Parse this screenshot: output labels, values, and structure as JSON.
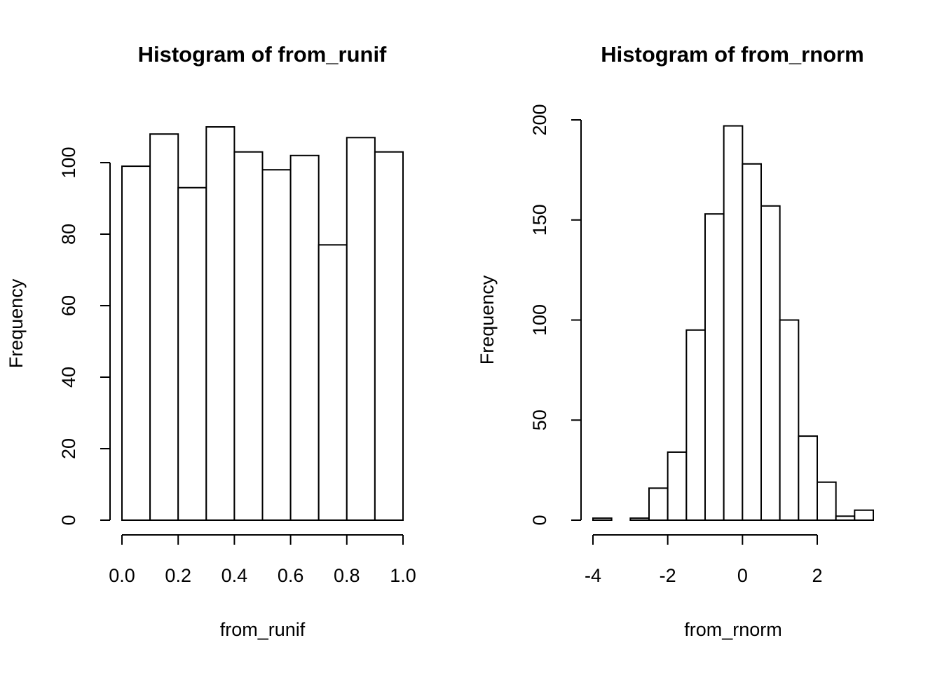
{
  "chart_data": [
    {
      "type": "histogram",
      "title": "Histogram of from_runif",
      "x_label": "from_runif",
      "y_label": "Frequency",
      "bins": [
        0,
        0.1,
        0.2,
        0.3,
        0.4,
        0.5,
        0.6,
        0.7,
        0.8,
        0.9,
        1
      ],
      "counts": [
        99,
        108,
        93,
        110,
        103,
        98,
        102,
        77,
        107,
        103
      ],
      "color": "#ffffff",
      "xlim": [
        0,
        1
      ],
      "xticks": [
        {
          "value": 0,
          "label": "0.0"
        },
        {
          "value": 0.2,
          "label": "0.2"
        },
        {
          "value": 0.4,
          "label": "0.4"
        },
        {
          "value": 0.6,
          "label": "0.6"
        },
        {
          "value": 0.8,
          "label": "0.8"
        },
        {
          "value": 1,
          "label": "1.0"
        }
      ],
      "ylim": [
        0,
        110
      ],
      "yticks": [
        0,
        20,
        40,
        60,
        80,
        100
      ]
    },
    {
      "type": "histogram",
      "title": "Histogram of from_rnorm",
      "x_label": "from_rnorm",
      "y_label": "Frequency",
      "bins": [
        -4,
        -3.5,
        -3,
        -2.5,
        -2,
        -1.5,
        -1,
        -0.5,
        0,
        0.5,
        1,
        1.5,
        2,
        2.5,
        3,
        3.5
      ],
      "counts": [
        1,
        0,
        1,
        16,
        34,
        95,
        153,
        197,
        178,
        157,
        100,
        42,
        19,
        2,
        5
      ],
      "color": "#ffffff",
      "xlim": [
        -4,
        3.5
      ],
      "xticks": [
        -4,
        -2,
        0,
        2
      ],
      "ylim": [
        0,
        200
      ],
      "yticks": [
        0,
        50,
        100,
        150,
        200
      ]
    }
  ]
}
